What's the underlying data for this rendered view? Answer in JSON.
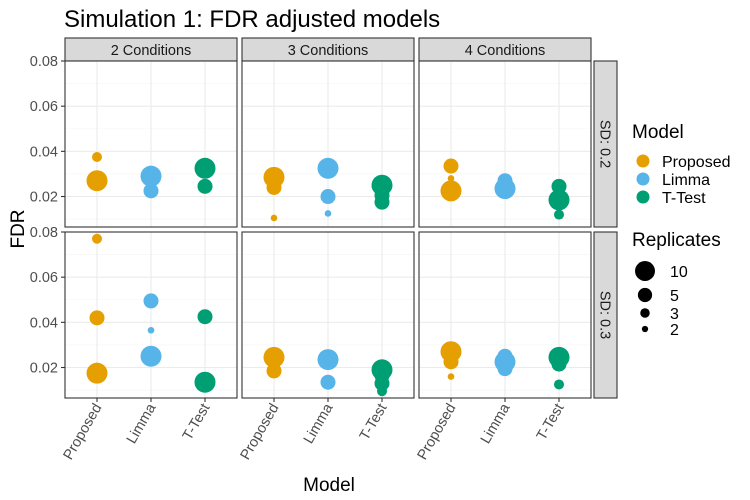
{
  "chart_data": {
    "type": "scatter",
    "title": "Simulation 1: FDR adjusted models",
    "xlabel": "Model",
    "ylabel": "FDR",
    "categories": [
      "Proposed",
      "Limma",
      "T-Test"
    ],
    "ylim": [
      0.0065,
      0.08
    ],
    "y_ticks": [
      0.02,
      0.04,
      0.06,
      0.08
    ],
    "y_tick_labels": [
      "0.02",
      "0.04",
      "0.06",
      "0.08"
    ],
    "column_facets": [
      "2 Conditions",
      "3 Conditions",
      "4 Conditions"
    ],
    "row_facets": [
      "SD: 0.2",
      "SD: 0.3"
    ],
    "grid": true,
    "colors": {
      "Proposed": "#E69F00",
      "Limma": "#56B4E9",
      "T-Test": "#009E73"
    },
    "legend": {
      "placement": "right",
      "color_title": "Model",
      "color_entries": [
        "Proposed",
        "Limma",
        "T-Test"
      ],
      "size_title": "Replicates",
      "size_entries": [
        10,
        5,
        3,
        2
      ]
    },
    "points": [
      {
        "col": 0,
        "row": 0,
        "model": "Proposed",
        "y": 0.0375,
        "replicates": 3
      },
      {
        "col": 0,
        "row": 0,
        "model": "Proposed",
        "y": 0.0275,
        "replicates": 5
      },
      {
        "col": 0,
        "row": 0,
        "model": "Proposed",
        "y": 0.027,
        "replicates": 10
      },
      {
        "col": 0,
        "row": 0,
        "model": "Limma",
        "y": 0.029,
        "replicates": 10
      },
      {
        "col": 0,
        "row": 0,
        "model": "Limma",
        "y": 0.0225,
        "replicates": 5
      },
      {
        "col": 0,
        "row": 0,
        "model": "T-Test",
        "y": 0.0325,
        "replicates": 10
      },
      {
        "col": 0,
        "row": 0,
        "model": "T-Test",
        "y": 0.0245,
        "replicates": 5
      },
      {
        "col": 1,
        "row": 0,
        "model": "Proposed",
        "y": 0.0285,
        "replicates": 10
      },
      {
        "col": 1,
        "row": 0,
        "model": "Proposed",
        "y": 0.024,
        "replicates": 5
      },
      {
        "col": 1,
        "row": 0,
        "model": "Proposed",
        "y": 0.0105,
        "replicates": 2
      },
      {
        "col": 1,
        "row": 0,
        "model": "Limma",
        "y": 0.0325,
        "replicates": 10
      },
      {
        "col": 1,
        "row": 0,
        "model": "Limma",
        "y": 0.02,
        "replicates": 5
      },
      {
        "col": 1,
        "row": 0,
        "model": "Limma",
        "y": 0.0125,
        "replicates": 2
      },
      {
        "col": 1,
        "row": 0,
        "model": "T-Test",
        "y": 0.025,
        "replicates": 10
      },
      {
        "col": 1,
        "row": 0,
        "model": "T-Test",
        "y": 0.0205,
        "replicates": 5
      },
      {
        "col": 1,
        "row": 0,
        "model": "T-Test",
        "y": 0.0175,
        "replicates": 5
      },
      {
        "col": 2,
        "row": 0,
        "model": "Proposed",
        "y": 0.0335,
        "replicates": 5
      },
      {
        "col": 2,
        "row": 0,
        "model": "Proposed",
        "y": 0.028,
        "replicates": 2
      },
      {
        "col": 2,
        "row": 0,
        "model": "Proposed",
        "y": 0.0225,
        "replicates": 10
      },
      {
        "col": 2,
        "row": 0,
        "model": "Limma",
        "y": 0.027,
        "replicates": 5
      },
      {
        "col": 2,
        "row": 0,
        "model": "Limma",
        "y": 0.0235,
        "replicates": 10
      },
      {
        "col": 2,
        "row": 0,
        "model": "T-Test",
        "y": 0.0245,
        "replicates": 5
      },
      {
        "col": 2,
        "row": 0,
        "model": "T-Test",
        "y": 0.0185,
        "replicates": 10
      },
      {
        "col": 2,
        "row": 0,
        "model": "T-Test",
        "y": 0.012,
        "replicates": 3
      },
      {
        "col": 0,
        "row": 1,
        "model": "Proposed",
        "y": 0.077,
        "replicates": 3
      },
      {
        "col": 0,
        "row": 1,
        "model": "Proposed",
        "y": 0.042,
        "replicates": 5
      },
      {
        "col": 0,
        "row": 1,
        "model": "Proposed",
        "y": 0.0175,
        "replicates": 10
      },
      {
        "col": 0,
        "row": 1,
        "model": "Limma",
        "y": 0.0495,
        "replicates": 5
      },
      {
        "col": 0,
        "row": 1,
        "model": "Limma",
        "y": 0.0365,
        "replicates": 2
      },
      {
        "col": 0,
        "row": 1,
        "model": "Limma",
        "y": 0.025,
        "replicates": 10
      },
      {
        "col": 0,
        "row": 1,
        "model": "T-Test",
        "y": 0.0425,
        "replicates": 5
      },
      {
        "col": 0,
        "row": 1,
        "model": "T-Test",
        "y": 0.0135,
        "replicates": 10
      },
      {
        "col": 1,
        "row": 1,
        "model": "Proposed",
        "y": 0.0245,
        "replicates": 10
      },
      {
        "col": 1,
        "row": 1,
        "model": "Proposed",
        "y": 0.0185,
        "replicates": 5
      },
      {
        "col": 1,
        "row": 1,
        "model": "Limma",
        "y": 0.0235,
        "replicates": 10
      },
      {
        "col": 1,
        "row": 1,
        "model": "Limma",
        "y": 0.0135,
        "replicates": 5
      },
      {
        "col": 1,
        "row": 1,
        "model": "T-Test",
        "y": 0.019,
        "replicates": 10
      },
      {
        "col": 1,
        "row": 1,
        "model": "T-Test",
        "y": 0.0165,
        "replicates": 5
      },
      {
        "col": 1,
        "row": 1,
        "model": "T-Test",
        "y": 0.013,
        "replicates": 5
      },
      {
        "col": 1,
        "row": 1,
        "model": "T-Test",
        "y": 0.0095,
        "replicates": 3
      },
      {
        "col": 2,
        "row": 1,
        "model": "Proposed",
        "y": 0.027,
        "replicates": 10
      },
      {
        "col": 2,
        "row": 1,
        "model": "Proposed",
        "y": 0.0225,
        "replicates": 5
      },
      {
        "col": 2,
        "row": 1,
        "model": "Proposed",
        "y": 0.016,
        "replicates": 2
      },
      {
        "col": 2,
        "row": 1,
        "model": "Limma",
        "y": 0.025,
        "replicates": 5
      },
      {
        "col": 2,
        "row": 1,
        "model": "Limma",
        "y": 0.0225,
        "replicates": 10
      },
      {
        "col": 2,
        "row": 1,
        "model": "Limma",
        "y": 0.0195,
        "replicates": 5
      },
      {
        "col": 2,
        "row": 1,
        "model": "T-Test",
        "y": 0.0245,
        "replicates": 10
      },
      {
        "col": 2,
        "row": 1,
        "model": "T-Test",
        "y": 0.0215,
        "replicates": 5
      },
      {
        "col": 2,
        "row": 1,
        "model": "T-Test",
        "y": 0.0125,
        "replicates": 3
      }
    ]
  }
}
